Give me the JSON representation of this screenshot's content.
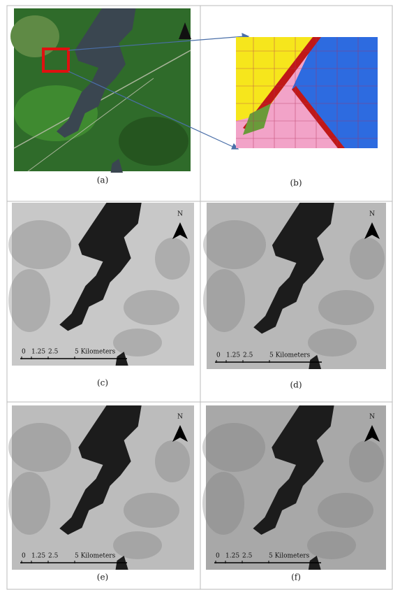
{
  "panels": [
    {
      "label": "(a)"
    },
    {
      "label": "(b)"
    },
    {
      "label": "(c)",
      "north": "N",
      "scale": [
        "0",
        "1.25",
        "2.5",
        "5 Kilometers"
      ]
    },
    {
      "label": "(d)",
      "north": "N",
      "scale": [
        "0",
        "1.25",
        "2.5",
        "5 Kilometers"
      ]
    },
    {
      "label": "(e)",
      "north": "N",
      "scale": [
        "0",
        "1.25",
        "2.5",
        "5 Kilometers"
      ]
    },
    {
      "label": "(f)",
      "north": "N",
      "scale": [
        "0",
        "1.25",
        "2.5",
        "5 Kilometers"
      ]
    }
  ]
}
